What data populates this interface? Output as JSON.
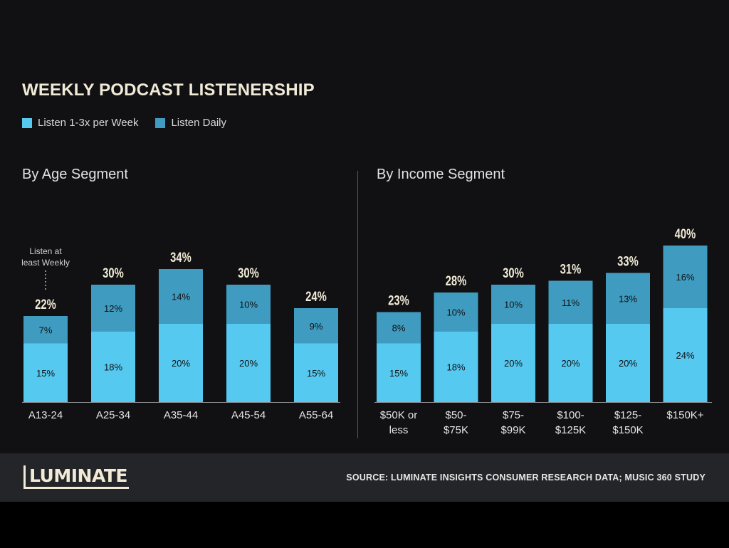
{
  "title": "WEEKLY PODCAST LISTENERSHIP",
  "legend": [
    {
      "label": "Listen 1-3x per Week",
      "color": "#56c9f0"
    },
    {
      "label": "Listen Daily",
      "color": "#3f9cc0"
    }
  ],
  "colors": {
    "weekly": "#56c9f0",
    "daily": "#3f9cc0",
    "total_label": "#f1ead6"
  },
  "chart_data": [
    {
      "type": "bar",
      "stacked": true,
      "title": "By Age Segment",
      "categories": [
        "A13-24",
        "A25-34",
        "A35-44",
        "A45-54",
        "A55-64"
      ],
      "series": [
        {
          "name": "Listen 1-3x per Week",
          "values": [
            15,
            18,
            20,
            20,
            15
          ]
        },
        {
          "name": "Listen Daily",
          "values": [
            7,
            12,
            14,
            10,
            9
          ]
        }
      ],
      "totals": [
        "22%",
        "30%",
        "34%",
        "30%",
        "24%"
      ],
      "segment_labels": {
        "weekly": [
          "15%",
          "18%",
          "20%",
          "20%",
          "15%"
        ],
        "daily": [
          "7%",
          "12%",
          "14%",
          "10%",
          "9%"
        ]
      },
      "annotation": {
        "lines": [
          "Listen at",
          "least Weekly"
        ],
        "category": "A13-24"
      },
      "ylim": [
        0,
        40
      ]
    },
    {
      "type": "bar",
      "stacked": true,
      "title": "By Income Segment",
      "categories": [
        [
          "$50K or",
          "less"
        ],
        [
          "$50-",
          "$75K"
        ],
        [
          "$75-",
          "$99K"
        ],
        [
          "$100-",
          "$125K"
        ],
        [
          "$125-",
          "$150K"
        ],
        [
          "$150K+"
        ]
      ],
      "series": [
        {
          "name": "Listen 1-3x per Week",
          "values": [
            15,
            18,
            20,
            20,
            20,
            24
          ]
        },
        {
          "name": "Listen Daily",
          "values": [
            8,
            10,
            10,
            11,
            13,
            16
          ]
        }
      ],
      "totals": [
        "23%",
        "28%",
        "30%",
        "31%",
        "33%",
        "40%"
      ],
      "segment_labels": {
        "weekly": [
          "15%",
          "18%",
          "20%",
          "20%",
          "20%",
          "24%"
        ],
        "daily": [
          "8%",
          "10%",
          "10%",
          "11%",
          "13%",
          "16%"
        ]
      },
      "ylim": [
        0,
        40
      ]
    }
  ],
  "footer": {
    "logo": "LUMINATE",
    "source": "SOURCE:   LUMINATE INSIGHTS CONSUMER RESEARCH DATA; MUSIC 360 STUDY"
  }
}
